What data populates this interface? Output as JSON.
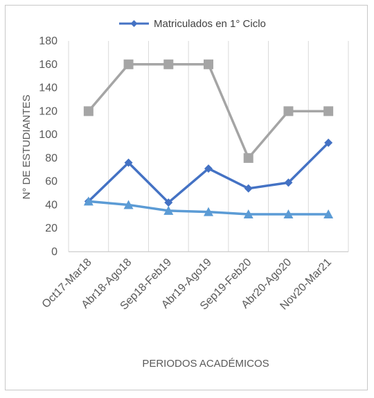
{
  "chart_data": {
    "type": "line",
    "categories": [
      "Oct17-Mar18",
      "Abr18-Ago18",
      "Sep18-Feb19",
      "Abr19-Ago19",
      "Sep19-Feb20",
      "Abr20-Ago20",
      "Nov20-Mar21"
    ],
    "series": [
      {
        "name": "Matriculados en 1° Ciclo",
        "values": [
          43,
          76,
          42,
          71,
          54,
          59,
          93
        ],
        "color": "#4472c4",
        "marker": "diamond"
      },
      {
        "name": "",
        "values": [
          120,
          160,
          160,
          160,
          80,
          120,
          120
        ],
        "color": "#a5a5a5",
        "marker": "square"
      },
      {
        "name": "",
        "values": [
          43,
          40,
          35,
          34,
          32,
          32,
          32
        ],
        "color": "#5b9bd5",
        "marker": "triangle"
      }
    ],
    "xlabel": "PERIODOS ACADÉMICOS",
    "ylabel": "N° DE ESTUDIANTES",
    "ylim": [
      0,
      180
    ],
    "yticks": [
      0,
      20,
      40,
      60,
      80,
      100,
      120,
      140,
      160,
      180
    ],
    "grid": "vertical",
    "legend_position": "top"
  }
}
